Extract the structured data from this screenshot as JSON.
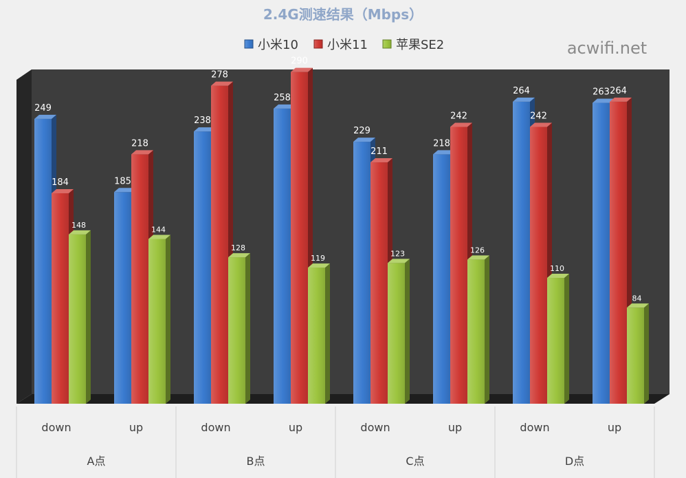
{
  "chart_data": {
    "type": "bar",
    "title": "2.4G测速结果（Mbps）",
    "watermark": "acwifi.net",
    "groups": [
      "A点",
      "B点",
      "C点",
      "D点"
    ],
    "categories": [
      "down",
      "up",
      "down",
      "up",
      "down",
      "up",
      "down",
      "up"
    ],
    "series": [
      {
        "name": "小米10",
        "color": "#3a7bd0",
        "values": [
          249,
          185,
          238,
          258,
          229,
          218,
          264,
          263
        ]
      },
      {
        "name": "小米11",
        "color": "#cf3833",
        "values": [
          184,
          218,
          278,
          290,
          211,
          242,
          242,
          264
        ]
      },
      {
        "name": "苹果SE2",
        "color": "#9cc43e",
        "values": [
          148,
          144,
          128,
          119,
          123,
          126,
          110,
          84
        ]
      }
    ],
    "ylim": [
      0,
      300
    ],
    "grid": false,
    "legend_position": "top",
    "data_labels": true,
    "colors": {
      "background": "#f0f0f0",
      "plot_back": "#3d3d3d",
      "plot_side": "#262626",
      "title": "#8fa6c8",
      "axis_text": "#404040"
    }
  }
}
